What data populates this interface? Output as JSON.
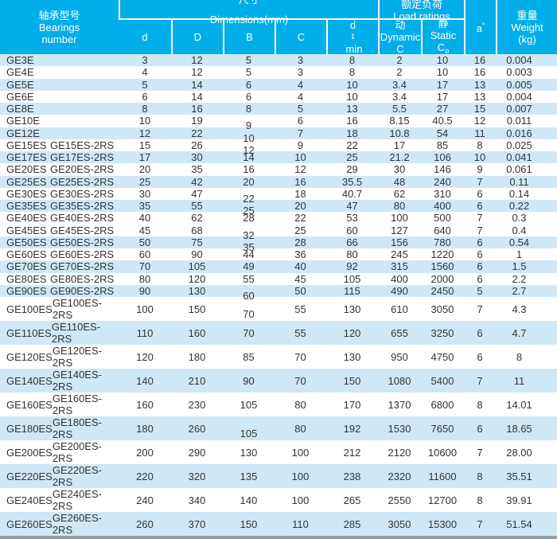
{
  "header": {
    "bearings_zh": "轴承型号",
    "bearings_en_line1": "Bearings",
    "bearings_en_line2": "number",
    "dims_zh": "尺寸",
    "dims_en": "Dimensions(mm)",
    "loads_zh": "额定负荷",
    "loads_en": "Load ratings",
    "d": "d",
    "D": "D",
    "B": "B",
    "C": "C",
    "d1_base": "d",
    "d1_sub": "1",
    "d1_rest": "min",
    "dyn_zh": "动",
    "dyn_en": "Dynamic",
    "dyn_sym": "C",
    "stat_zh": "静",
    "stat_en": "Static",
    "stat_sym": "C",
    "stat_sym_sub": "o",
    "a_base": "a",
    "a_sup": "°",
    "weight_zh": "重量",
    "weight_en": "Weight",
    "weight_unit": "(kg)"
  },
  "colors": {
    "header_bg": "#00aee9",
    "stripe_bg": "#cfe8f7",
    "header_text": "#ffffff",
    "body_text": "#333333",
    "bottom_bar": "#8f9ca8"
  },
  "chart_data": {
    "type": "table",
    "title": "轴承型号 Bearings number — 尺寸 Dimensions(mm) — 额定负荷 Load ratings",
    "columns": [
      "Bearings number",
      "Bearings number (2RS)",
      "d",
      "D",
      "B",
      "C",
      "d1 min",
      "Dynamic C",
      "Static Co",
      "a°",
      "Weight (kg)"
    ],
    "rows": [
      [
        "GE3E",
        "",
        "3",
        "12",
        "5",
        "3",
        "8",
        "2",
        "10",
        "16",
        "0.004"
      ],
      [
        "GE4E",
        "",
        "4",
        "12",
        "5",
        "3",
        "8",
        "2",
        "10",
        "16",
        "0.003"
      ],
      [
        "GE5E",
        "",
        "5",
        "14",
        "6",
        "4",
        "10",
        "3.4",
        "17",
        "13",
        "0.005"
      ],
      [
        "GE6E",
        "",
        "6",
        "14",
        "6",
        "4",
        "10",
        "3.4",
        "17",
        "13",
        "0.004"
      ],
      [
        "GE8E",
        "",
        "8",
        "16",
        "8",
        "5",
        "13",
        "5.5",
        "27",
        "15",
        "0.007"
      ],
      [
        "GE10E",
        "",
        "10",
        "19",
        "9",
        "6",
        "16",
        "8.15",
        "40.5",
        "12",
        "0.011"
      ],
      [
        "GE12E",
        "",
        "12",
        "22",
        "10",
        "7",
        "18",
        "10.8",
        "54",
        "11",
        "0.016"
      ],
      [
        "GE15ES",
        "GE15ES-2RS",
        "15",
        "26",
        "12",
        "9",
        "22",
        "17",
        "85",
        "8",
        "0.025"
      ],
      [
        "GE17ES",
        "GE17ES-2RS",
        "17",
        "30",
        "14",
        "10",
        "25",
        "21.2",
        "106",
        "10",
        "0.041"
      ],
      [
        "GE20ES",
        "GE20ES-2RS",
        "20",
        "35",
        "16",
        "12",
        "29",
        "30",
        "146",
        "9",
        "0.061"
      ],
      [
        "GE25ES",
        "GE25ES-2RS",
        "25",
        "42",
        "20",
        "16",
        "35.5",
        "48",
        "240",
        "7",
        "0.11"
      ],
      [
        "GE30ES",
        "GE30ES-2RS",
        "30",
        "47",
        "22",
        "18",
        "40.7",
        "62",
        "310",
        "6",
        "0.14"
      ],
      [
        "GE35ES",
        "GE35ES-2RS",
        "35",
        "55",
        "25",
        "20",
        "47",
        "80",
        "400",
        "6",
        "0.22"
      ],
      [
        "GE40ES",
        "GE40ES-2RS",
        "40",
        "62",
        "28",
        "22",
        "53",
        "100",
        "500",
        "7",
        "0.3"
      ],
      [
        "GE45ES",
        "GE45ES-2RS",
        "45",
        "68",
        "32",
        "25",
        "60",
        "127",
        "640",
        "7",
        "0.4"
      ],
      [
        "GE50ES",
        "GE50ES-2RS",
        "50",
        "75",
        "35",
        "28",
        "66",
        "156",
        "780",
        "6",
        "0.54"
      ],
      [
        "GE60ES",
        "GE60ES-2RS",
        "60",
        "90",
        "44",
        "36",
        "80",
        "245",
        "1220",
        "6",
        "1"
      ],
      [
        "GE70ES",
        "GE70ES-2RS",
        "70",
        "105",
        "49",
        "40",
        "92",
        "315",
        "1560",
        "6",
        "1.5"
      ],
      [
        "GE80ES",
        "GE80ES-2RS",
        "80",
        "120",
        "55",
        "45",
        "105",
        "400",
        "2000",
        "6",
        "2.2"
      ],
      [
        "GE90ES",
        "GE90ES-2RS",
        "90",
        "130",
        "60",
        "50",
        "115",
        "490",
        "2450",
        "5",
        "2.7"
      ],
      [
        "GE100ES",
        "GE100ES-2RS",
        "100",
        "150",
        "70",
        "55",
        "130",
        "610",
        "3050",
        "7",
        "4.3"
      ],
      [
        "GE110ES",
        "GE110ES-2RS",
        "110",
        "160",
        "70",
        "55",
        "120",
        "655",
        "3250",
        "6",
        "4.7"
      ],
      [
        "GE120ES",
        "GE120ES-2RS",
        "120",
        "180",
        "85",
        "70",
        "130",
        "950",
        "4750",
        "6",
        "8"
      ],
      [
        "GE140ES",
        "GE140ES-2RS",
        "140",
        "210",
        "90",
        "70",
        "150",
        "1080",
        "5400",
        "7",
        "11"
      ],
      [
        "GE160ES",
        "GE160ES-2RS",
        "160",
        "230",
        "105",
        "80",
        "170",
        "1370",
        "6800",
        "8",
        "14.01"
      ],
      [
        "GE180ES",
        "GE180ES-2RS",
        "180",
        "260",
        "105",
        "80",
        "192",
        "1530",
        "7650",
        "6",
        "18.65"
      ],
      [
        "GE200ES",
        "GE200ES-2RS",
        "200",
        "290",
        "130",
        "100",
        "212",
        "2120",
        "10600",
        "7",
        "28.00"
      ],
      [
        "GE220ES",
        "GE220ES-2RS",
        "220",
        "320",
        "135",
        "100",
        "238",
        "2320",
        "11600",
        "8",
        "35.51"
      ],
      [
        "GE240ES",
        "GE240ES-2RS",
        "240",
        "340",
        "140",
        "100",
        "265",
        "2550",
        "12700",
        "8",
        "39.91"
      ],
      [
        "GE260ES",
        "GE260ES-2RS",
        "260",
        "370",
        "150",
        "110",
        "285",
        "3050",
        "15300",
        "7",
        "51.54"
      ]
    ]
  }
}
